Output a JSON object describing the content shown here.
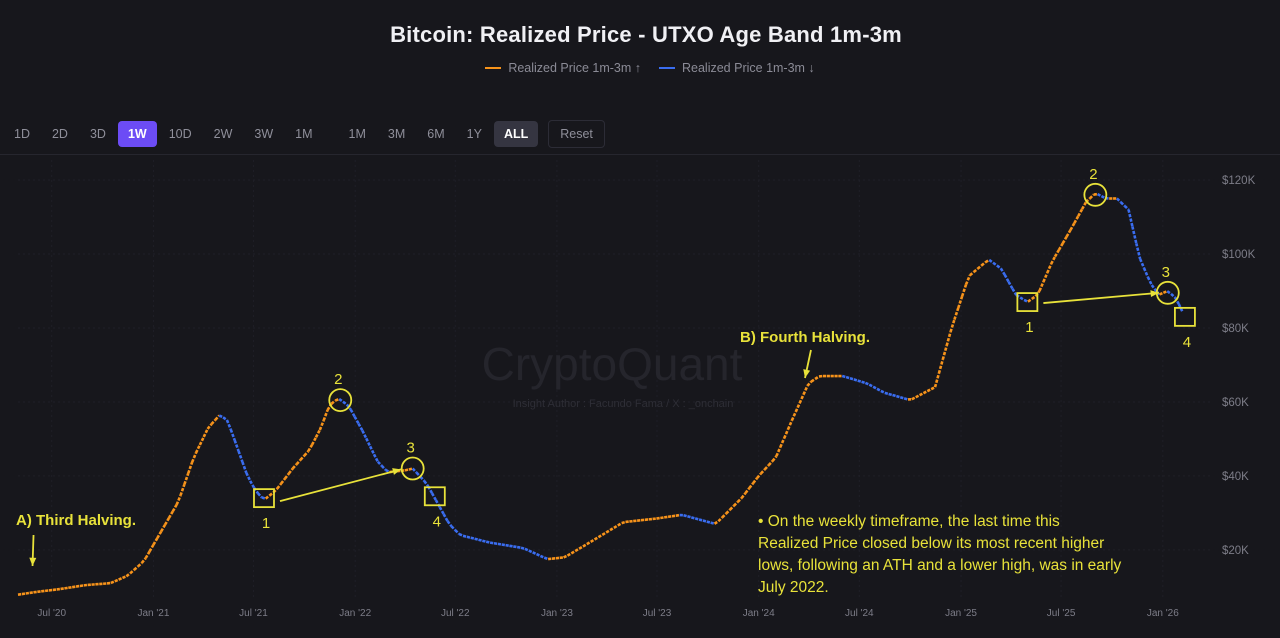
{
  "header": {
    "title": "Bitcoin: Realized Price - UTXO Age Band 1m-3m",
    "legend": [
      {
        "label": "Realized Price 1m-3m ↑",
        "color": "#f7931a"
      },
      {
        "label": "Realized Price 1m-3m ↓",
        "color": "#3a6df0"
      }
    ]
  },
  "toolbar": {
    "intervals": [
      "1D",
      "2D",
      "3D",
      "1W",
      "10D",
      "2W",
      "3W",
      "1M"
    ],
    "active_interval": "1W",
    "ranges": [
      "1M",
      "3M",
      "6M",
      "1Y",
      "ALL"
    ],
    "active_range": "ALL",
    "reset_label": "Reset"
  },
  "watermark": {
    "brand": "CryptoQuant",
    "author": "Insight Author : Facundo Fama / X : _onchain"
  },
  "chart_data": {
    "type": "line",
    "title": "Bitcoin: Realized Price - UTXO Age Band 1m-3m",
    "x_ticks": [
      "Jul '20",
      "Jan '21",
      "Jul '21",
      "Jan '22",
      "Jul '22",
      "Jan '23",
      "Jul '23",
      "Jan '24",
      "Jul '24",
      "Jan '25",
      "Jul '25",
      "Jan '26"
    ],
    "y_ticks": [
      "$20K",
      "$40K",
      "$60K",
      "$80K",
      "$100K",
      "$120K"
    ],
    "ylim": [
      0,
      123000
    ],
    "x_range": [
      "2020-05-01",
      "2026-03-31"
    ],
    "series_points": [
      [
        "2020-05-01",
        7900
      ],
      [
        "2020-06-01",
        8600
      ],
      [
        "2020-07-15",
        9400
      ],
      [
        "2020-09-01",
        10500
      ],
      [
        "2020-10-15",
        11000
      ],
      [
        "2020-11-15",
        13000
      ],
      [
        "2020-12-15",
        17000
      ],
      [
        "2021-01-15",
        25000
      ],
      [
        "2021-02-15",
        33000
      ],
      [
        "2021-03-15",
        45000
      ],
      [
        "2021-04-10",
        53000
      ],
      [
        "2021-05-01",
        56500
      ],
      [
        "2021-05-15",
        55000
      ],
      [
        "2021-06-01",
        48000
      ],
      [
        "2021-06-20",
        40000
      ],
      [
        "2021-07-05",
        36000
      ],
      [
        "2021-07-20",
        33500
      ],
      [
        "2021-08-10",
        36000
      ],
      [
        "2021-09-10",
        42000
      ],
      [
        "2021-10-10",
        47000
      ],
      [
        "2021-10-31",
        53000
      ],
      [
        "2021-11-15",
        59000
      ],
      [
        "2021-12-01",
        61000
      ],
      [
        "2021-12-20",
        59000
      ],
      [
        "2022-01-15",
        52000
      ],
      [
        "2022-02-10",
        44000
      ],
      [
        "2022-03-01",
        41000
      ],
      [
        "2022-04-01",
        41500
      ],
      [
        "2022-04-15",
        42000
      ],
      [
        "2022-05-10",
        38000
      ],
      [
        "2022-05-25",
        34000
      ],
      [
        "2022-06-20",
        27000
      ],
      [
        "2022-07-10",
        24000
      ],
      [
        "2022-09-01",
        22000
      ],
      [
        "2022-11-01",
        20500
      ],
      [
        "2022-12-15",
        17500
      ],
      [
        "2023-01-15",
        18000
      ],
      [
        "2023-03-01",
        22000
      ],
      [
        "2023-05-01",
        27500
      ],
      [
        "2023-07-01",
        28500
      ],
      [
        "2023-08-15",
        29500
      ],
      [
        "2023-10-15",
        27000
      ],
      [
        "2023-12-01",
        34000
      ],
      [
        "2024-01-01",
        40000
      ],
      [
        "2024-02-01",
        45000
      ],
      [
        "2024-03-01",
        55000
      ],
      [
        "2024-03-31",
        65000
      ],
      [
        "2024-04-20",
        67000
      ],
      [
        "2024-06-01",
        67000
      ],
      [
        "2024-07-15",
        65000
      ],
      [
        "2024-08-15",
        62500
      ],
      [
        "2024-10-01",
        60500
      ],
      [
        "2024-11-15",
        64000
      ],
      [
        "2024-12-15",
        80000
      ],
      [
        "2025-01-15",
        94000
      ],
      [
        "2025-02-20",
        98500
      ],
      [
        "2025-03-15",
        96000
      ],
      [
        "2025-04-10",
        89000
      ],
      [
        "2025-05-01",
        87000
      ],
      [
        "2025-05-20",
        89000
      ],
      [
        "2025-06-15",
        98000
      ],
      [
        "2025-07-20",
        107000
      ],
      [
        "2025-08-15",
        114000
      ],
      [
        "2025-09-01",
        116500
      ],
      [
        "2025-09-20",
        115000
      ],
      [
        "2025-10-10",
        115000
      ],
      [
        "2025-10-31",
        112000
      ],
      [
        "2025-11-20",
        99000
      ],
      [
        "2025-12-10",
        92000
      ],
      [
        "2025-12-25",
        89000
      ],
      [
        "2026-01-10",
        90000
      ],
      [
        "2026-01-25",
        88000
      ],
      [
        "2026-02-10",
        83000
      ]
    ],
    "series_points_units": {
      "x": "date",
      "y": "USD"
    },
    "annotations": {
      "third_halving": {
        "label": "A) Third Halving.",
        "date": "2020-05-11"
      },
      "fourth_halving": {
        "label": "B) Fourth Halving.",
        "date": "2024-04-19"
      },
      "cycle_2021_markers": [
        {
          "label": "1",
          "shape": "square",
          "date": "2021-07-20",
          "value": 34000
        },
        {
          "label": "2",
          "shape": "circle",
          "date": "2021-12-05",
          "value": 60500
        },
        {
          "label": "3",
          "shape": "circle",
          "date": "2022-04-15",
          "value": 42000
        },
        {
          "label": "4",
          "shape": "square",
          "date": "2022-05-25",
          "value": 34500
        }
      ],
      "cycle_2025_markers": [
        {
          "label": "1",
          "shape": "square",
          "date": "2025-05-01",
          "value": 87000
        },
        {
          "label": "2",
          "shape": "circle",
          "date": "2025-09-01",
          "value": 116000
        },
        {
          "label": "3",
          "shape": "circle",
          "date": "2026-01-10",
          "value": 89500
        },
        {
          "label": "4",
          "shape": "square",
          "date": "2026-02-10",
          "value": 83000
        }
      ],
      "note": "• On the weekly timeframe, the last time this Realized Price closed below its most recent higher lows, following an ATH and a lower high, was in early July 2022."
    },
    "colors": {
      "up": "#f7931a",
      "down": "#3a6df0",
      "annotation": "#e8e23a"
    }
  }
}
